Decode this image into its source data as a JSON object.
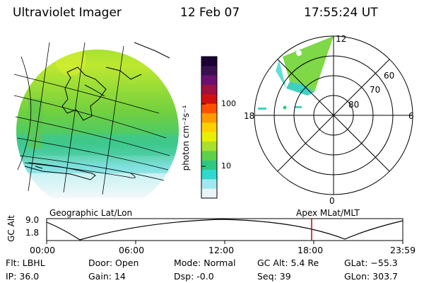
{
  "header": {
    "title": "Ultraviolet Imager",
    "date": "12 Feb 07",
    "time": "17:55:24 UT"
  },
  "colorbar": {
    "label": "photon cm⁻²s⁻¹",
    "ticks": [
      "100",
      "10"
    ],
    "colors": [
      "#1a0033",
      "#3a1050",
      "#6b1070",
      "#a01040",
      "#d01010",
      "#ff5000",
      "#ff9a00",
      "#ffd000",
      "#e8f000",
      "#a8e030",
      "#60d048",
      "#30c880",
      "#30d8d0",
      "#a0e8f0",
      "#e8f4f8"
    ]
  },
  "polar": {
    "mlat_labels": [
      "60",
      "70",
      "80"
    ],
    "mlt_labels": [
      "12",
      "18",
      "6",
      "0"
    ]
  },
  "timeline": {
    "left_label": "Geographic Lat/Lon",
    "right_label": "Apex  MLat/MLT",
    "axis_label": "GC Alt",
    "alt_ticks": [
      "9.0",
      "1.8"
    ],
    "time_ticks": [
      "00:00",
      "06:00",
      "12:00",
      "18:00",
      "23:59"
    ],
    "cursor_color": "#cc0000"
  },
  "info": {
    "flt": "Flt: LBHL",
    "ip": "IP: 36.0",
    "door": "Door: Open",
    "gain": "Gain: 14",
    "mode": "Mode: Normal",
    "dsp": "Dsp:    -0.0",
    "gc_alt": "GC Alt: 5.4 Re",
    "seq": "Seq: 39",
    "glat": "GLat: −55.3",
    "glon": "GLon: 303.7"
  }
}
